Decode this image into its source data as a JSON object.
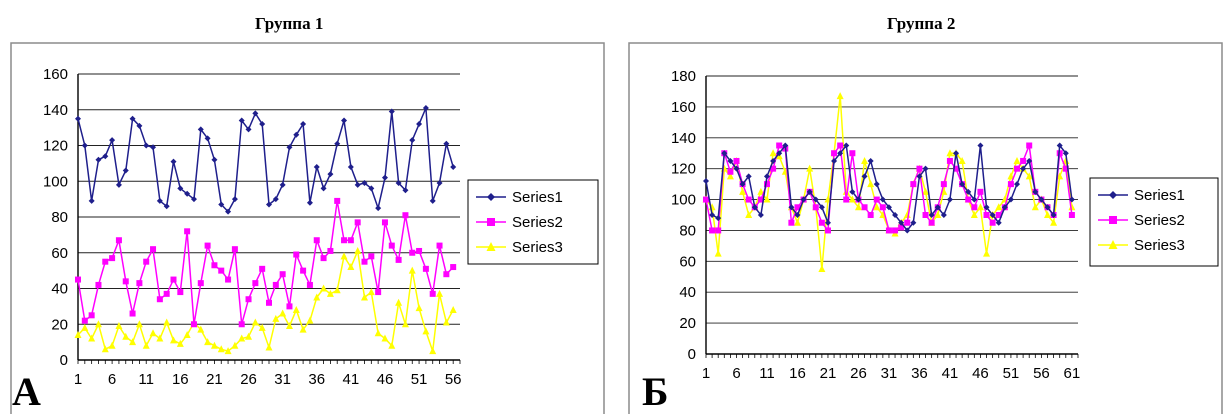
{
  "panels": [
    {
      "title": "Группа 1",
      "letter": "А"
    },
    {
      "title": "Группа 2",
      "letter": "Б"
    }
  ],
  "chart_data": [
    {
      "type": "line",
      "x_ticks": [
        "1",
        "6",
        "11",
        "16",
        "21",
        "26",
        "31",
        "36",
        "41",
        "46",
        "51",
        "56"
      ],
      "xlim": [
        1,
        57
      ],
      "ylim": [
        0,
        160
      ],
      "y_ticks": [
        0,
        20,
        40,
        60,
        80,
        100,
        120,
        140,
        160
      ],
      "grid": true,
      "legend": "right",
      "series": [
        {
          "name": "Series1",
          "color": "#1f1f8c",
          "marker": "diamond",
          "values": [
            135,
            120,
            89,
            112,
            114,
            123,
            98,
            106,
            135,
            131,
            120,
            119,
            89,
            86,
            111,
            96,
            93,
            90,
            129,
            124,
            112,
            87,
            83,
            90,
            134,
            129,
            138,
            132,
            87,
            90,
            98,
            119,
            126,
            132,
            88,
            108,
            96,
            104,
            121,
            134,
            108,
            98,
            99,
            96,
            85,
            102,
            139,
            99,
            95,
            123,
            132,
            141,
            89,
            99,
            121,
            108
          ]
        },
        {
          "name": "Series2",
          "color": "#ff00ff",
          "marker": "square",
          "values": [
            45,
            22,
            25,
            42,
            55,
            57,
            67,
            44,
            26,
            43,
            55,
            62,
            34,
            37,
            45,
            38,
            72,
            20,
            43,
            64,
            53,
            50,
            45,
            62,
            20,
            34,
            43,
            51,
            32,
            42,
            48,
            30,
            59,
            50,
            42,
            67,
            57,
            61,
            89,
            67,
            67,
            77,
            55,
            58,
            38,
            77,
            64,
            56,
            81,
            60,
            61,
            51,
            37,
            64,
            48,
            52
          ]
        },
        {
          "name": "Series3",
          "color": "#ffff00",
          "marker": "triangle",
          "values": [
            14,
            18,
            12,
            20,
            6,
            8,
            19,
            13,
            10,
            20,
            8,
            15,
            12,
            21,
            11,
            9,
            14,
            21,
            17,
            10,
            8,
            6,
            5,
            8,
            12,
            13,
            21,
            18,
            7,
            23,
            26,
            19,
            28,
            17,
            22,
            35,
            40,
            37,
            39,
            58,
            52,
            61,
            35,
            38,
            15,
            12,
            8,
            32,
            20,
            50,
            29,
            16,
            5,
            37,
            21,
            28
          ]
        }
      ]
    },
    {
      "type": "line",
      "x_ticks": [
        "1",
        "6",
        "11",
        "16",
        "21",
        "26",
        "31",
        "36",
        "41",
        "46",
        "51",
        "56",
        "61"
      ],
      "xlim": [
        1,
        62
      ],
      "ylim": [
        0,
        180
      ],
      "y_ticks": [
        0,
        20,
        40,
        60,
        80,
        100,
        120,
        140,
        160,
        180
      ],
      "grid": true,
      "legend": "right",
      "series": [
        {
          "name": "Series1",
          "color": "#1f1f8c",
          "marker": "diamond",
          "values": [
            112,
            90,
            88,
            130,
            125,
            120,
            110,
            115,
            95,
            90,
            115,
            125,
            130,
            135,
            95,
            90,
            100,
            105,
            100,
            95,
            85,
            125,
            130,
            135,
            105,
            100,
            115,
            125,
            110,
            100,
            95,
            90,
            85,
            80,
            85,
            115,
            120,
            90,
            95,
            90,
            100,
            130,
            110,
            105,
            100,
            135,
            95,
            90,
            85,
            95,
            100,
            110,
            120,
            125,
            105,
            100,
            95,
            90,
            135,
            130,
            100
          ]
        },
        {
          "name": "Series2",
          "color": "#ff00ff",
          "marker": "square",
          "values": [
            100,
            80,
            80,
            130,
            118,
            125,
            110,
            100,
            95,
            100,
            110,
            120,
            135,
            133,
            85,
            95,
            100,
            105,
            95,
            85,
            80,
            130,
            135,
            100,
            130,
            100,
            95,
            90,
            100,
            95,
            80,
            80,
            82,
            85,
            110,
            120,
            90,
            85,
            95,
            110,
            125,
            120,
            110,
            100,
            95,
            105,
            90,
            85,
            90,
            95,
            110,
            120,
            125,
            135,
            105,
            100,
            95,
            90,
            130,
            120,
            90
          ]
        },
        {
          "name": "Series3",
          "color": "#ffff00",
          "marker": "triangle",
          "values": [
            100,
            95,
            65,
            120,
            115,
            125,
            105,
            90,
            95,
            105,
            100,
            130,
            128,
            118,
            95,
            85,
            100,
            120,
            95,
            55,
            100,
            130,
            167,
            105,
            100,
            95,
            125,
            110,
            95,
            90,
            80,
            78,
            85,
            90,
            110,
            120,
            105,
            85,
            90,
            105,
            130,
            130,
            125,
            100,
            90,
            95,
            65,
            90,
            95,
            100,
            115,
            125,
            120,
            115,
            95,
            100,
            90,
            85,
            115,
            125,
            95
          ]
        }
      ]
    }
  ]
}
